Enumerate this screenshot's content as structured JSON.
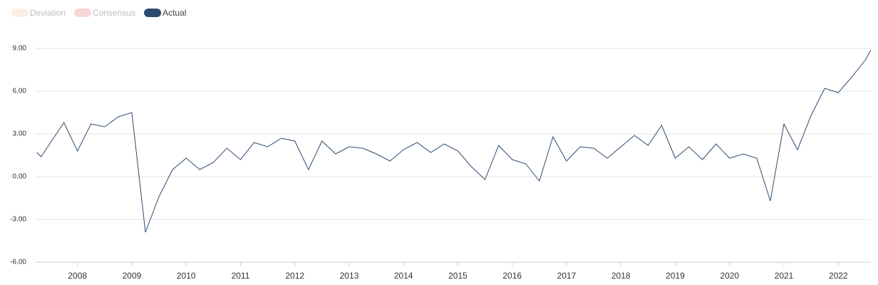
{
  "chart_data": {
    "type": "line",
    "legend_inactive": [
      {
        "name": "Deviation",
        "color": "#fdeee2"
      },
      {
        "name": "Consensus",
        "color": "#f6d6d6"
      }
    ],
    "x": [
      2007.25,
      2007.33,
      2007.75,
      2008,
      2008.25,
      2008.5,
      2008.75,
      2009,
      2009.25,
      2009.5,
      2009.75,
      2010,
      2010.25,
      2010.5,
      2010.75,
      2011,
      2011.25,
      2011.5,
      2011.75,
      2012,
      2012.25,
      2012.5,
      2012.75,
      2013,
      2013.25,
      2013.5,
      2013.75,
      2014,
      2014.25,
      2014.5,
      2014.75,
      2015,
      2015.25,
      2015.5,
      2015.75,
      2016,
      2016.25,
      2016.5,
      2016.75,
      2017,
      2017.25,
      2017.5,
      2017.75,
      2018,
      2018.25,
      2018.5,
      2018.75,
      2019,
      2019.25,
      2019.5,
      2019.75,
      2020,
      2020.25,
      2020.5,
      2020.75,
      2021,
      2021.25,
      2021.5,
      2021.75,
      2022,
      2022.25,
      2022.5,
      2022.6
    ],
    "series": [
      {
        "name": "Actual",
        "color": "#2e4a70",
        "values": [
          1.7,
          1.4,
          3.8,
          1.8,
          3.7,
          3.5,
          4.2,
          4.5,
          -3.9,
          -1.4,
          0.5,
          1.3,
          0.5,
          1.0,
          2.0,
          1.2,
          2.4,
          2.1,
          2.7,
          2.5,
          0.5,
          2.5,
          1.6,
          2.1,
          2.0,
          1.6,
          1.1,
          1.9,
          2.4,
          1.7,
          2.3,
          1.8,
          0.7,
          -0.2,
          2.2,
          1.2,
          0.9,
          -0.3,
          2.8,
          1.1,
          2.1,
          2.0,
          1.3,
          2.1,
          2.9,
          2.2,
          3.6,
          1.3,
          2.1,
          1.2,
          2.3,
          1.3,
          1.6,
          1.3,
          -1.7,
          3.7,
          1.9,
          4.3,
          6.2,
          5.9,
          7.0,
          8.2,
          8.9
        ]
      }
    ],
    "xlim": [
      2007.23,
      2022.6
    ],
    "xticks": [
      2008,
      2009,
      2010,
      2011,
      2012,
      2013,
      2014,
      2015,
      2016,
      2017,
      2018,
      2019,
      2020,
      2021,
      2022
    ],
    "ylim": [
      -6,
      9
    ],
    "yticks": [
      {
        "value": -6,
        "label": "-6.00"
      },
      {
        "value": -3,
        "label": "-3.00"
      },
      {
        "value": 0,
        "label": "0.00"
      },
      {
        "value": 3,
        "label": "3.00"
      },
      {
        "value": 6,
        "label": "6.00"
      },
      {
        "value": 9,
        "label": "9.00"
      }
    ],
    "grid": true
  }
}
